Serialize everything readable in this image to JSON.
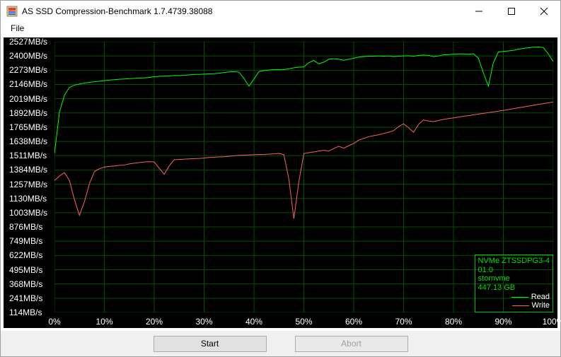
{
  "window": {
    "title": "AS SSD Compression-Benchmark 1.7.4739.38088"
  },
  "menubar": {
    "file": "File"
  },
  "chart": {
    "type": "line",
    "y_unit_suffix": "MB/s",
    "y_min": 114,
    "y_max": 2527,
    "y_ticks": [
      2527,
      2400,
      2273,
      2146,
      2019,
      1892,
      1765,
      1638,
      1511,
      1384,
      1257,
      1130,
      1003,
      876,
      749,
      622,
      495,
      368,
      241,
      114
    ],
    "x_unit_suffix": "%",
    "x_min": 0,
    "x_max": 100,
    "x_ticks": [
      0,
      10,
      20,
      30,
      40,
      50,
      60,
      70,
      80,
      90,
      100
    ],
    "grid_color": "#005000",
    "background_color": "#000000",
    "text_color": "#ffffff",
    "series": {
      "read": {
        "label": "Read",
        "color": "#00ff00",
        "line_width": 1,
        "points": [
          [
            0,
            1530
          ],
          [
            1,
            1900
          ],
          [
            2,
            2050
          ],
          [
            3,
            2120
          ],
          [
            4,
            2140
          ],
          [
            5,
            2150
          ],
          [
            6,
            2158
          ],
          [
            7,
            2165
          ],
          [
            8,
            2170
          ],
          [
            9,
            2175
          ],
          [
            10,
            2180
          ],
          [
            11,
            2185
          ],
          [
            12,
            2188
          ],
          [
            13,
            2192
          ],
          [
            14,
            2195
          ],
          [
            15,
            2198
          ],
          [
            16,
            2200
          ],
          [
            17,
            2203
          ],
          [
            18,
            2205
          ],
          [
            19,
            2208
          ],
          [
            20,
            2215
          ],
          [
            21,
            2218
          ],
          [
            22,
            2220
          ],
          [
            23,
            2222
          ],
          [
            24,
            2225
          ],
          [
            25,
            2225
          ],
          [
            26,
            2228
          ],
          [
            27,
            2232
          ],
          [
            28,
            2235
          ],
          [
            29,
            2236
          ],
          [
            30,
            2238
          ],
          [
            31,
            2240
          ],
          [
            32,
            2242
          ],
          [
            33,
            2246
          ],
          [
            34,
            2252
          ],
          [
            35,
            2258
          ],
          [
            36,
            2260
          ],
          [
            37,
            2255
          ],
          [
            38,
            2200
          ],
          [
            39,
            2130
          ],
          [
            40,
            2195
          ],
          [
            41,
            2260
          ],
          [
            42,
            2270
          ],
          [
            43,
            2275
          ],
          [
            44,
            2278
          ],
          [
            45,
            2280
          ],
          [
            46,
            2278
          ],
          [
            47,
            2285
          ],
          [
            48,
            2295
          ],
          [
            49,
            2300
          ],
          [
            50,
            2302
          ],
          [
            51,
            2340
          ],
          [
            52,
            2360
          ],
          [
            53,
            2330
          ],
          [
            54,
            2345
          ],
          [
            55,
            2370
          ],
          [
            56,
            2375
          ],
          [
            57,
            2370
          ],
          [
            58,
            2362
          ],
          [
            59,
            2370
          ],
          [
            60,
            2380
          ],
          [
            61,
            2390
          ],
          [
            62,
            2395
          ],
          [
            63,
            2398
          ],
          [
            64,
            2398
          ],
          [
            65,
            2400
          ],
          [
            66,
            2398
          ],
          [
            67,
            2400
          ],
          [
            68,
            2395
          ],
          [
            69,
            2398
          ],
          [
            70,
            2400
          ],
          [
            71,
            2402
          ],
          [
            72,
            2398
          ],
          [
            73,
            2405
          ],
          [
            74,
            2408
          ],
          [
            75,
            2405
          ],
          [
            76,
            2395
          ],
          [
            77,
            2400
          ],
          [
            78,
            2410
          ],
          [
            79,
            2412
          ],
          [
            80,
            2415
          ],
          [
            81,
            2418
          ],
          [
            82,
            2418
          ],
          [
            83,
            2415
          ],
          [
            84,
            2420
          ],
          [
            85,
            2380
          ],
          [
            86,
            2250
          ],
          [
            87,
            2130
          ],
          [
            88,
            2340
          ],
          [
            89,
            2435
          ],
          [
            90,
            2440
          ],
          [
            91,
            2445
          ],
          [
            92,
            2450
          ],
          [
            93,
            2460
          ],
          [
            94,
            2468
          ],
          [
            95,
            2473
          ],
          [
            96,
            2478
          ],
          [
            97,
            2480
          ],
          [
            98,
            2475
          ],
          [
            99,
            2420
          ],
          [
            100,
            2350
          ]
        ]
      },
      "write": {
        "label": "Write",
        "color": "#ff6060",
        "line_width": 1,
        "points": [
          [
            0,
            1290
          ],
          [
            1,
            1330
          ],
          [
            2,
            1360
          ],
          [
            3,
            1290
          ],
          [
            4,
            1120
          ],
          [
            5,
            980
          ],
          [
            6,
            1100
          ],
          [
            7,
            1260
          ],
          [
            8,
            1370
          ],
          [
            9,
            1395
          ],
          [
            10,
            1410
          ],
          [
            11,
            1415
          ],
          [
            12,
            1420
          ],
          [
            13,
            1425
          ],
          [
            14,
            1428
          ],
          [
            15,
            1438
          ],
          [
            16,
            1445
          ],
          [
            17,
            1450
          ],
          [
            18,
            1455
          ],
          [
            19,
            1458
          ],
          [
            20,
            1455
          ],
          [
            21,
            1400
          ],
          [
            22,
            1345
          ],
          [
            23,
            1420
          ],
          [
            24,
            1475
          ],
          [
            25,
            1478
          ],
          [
            26,
            1480
          ],
          [
            27,
            1483
          ],
          [
            28,
            1485
          ],
          [
            29,
            1487
          ],
          [
            30,
            1490
          ],
          [
            31,
            1495
          ],
          [
            32,
            1498
          ],
          [
            33,
            1500
          ],
          [
            34,
            1502
          ],
          [
            35,
            1506
          ],
          [
            36,
            1510
          ],
          [
            37,
            1514
          ],
          [
            38,
            1516
          ],
          [
            39,
            1518
          ],
          [
            40,
            1520
          ],
          [
            41,
            1522
          ],
          [
            42,
            1523
          ],
          [
            43,
            1525
          ],
          [
            44,
            1528
          ],
          [
            45,
            1532
          ],
          [
            46,
            1520
          ],
          [
            47,
            1300
          ],
          [
            48,
            950
          ],
          [
            49,
            1280
          ],
          [
            50,
            1530
          ],
          [
            51,
            1538
          ],
          [
            52,
            1545
          ],
          [
            53,
            1552
          ],
          [
            54,
            1560
          ],
          [
            55,
            1552
          ],
          [
            56,
            1575
          ],
          [
            57,
            1595
          ],
          [
            58,
            1578
          ],
          [
            59,
            1600
          ],
          [
            60,
            1620
          ],
          [
            61,
            1650
          ],
          [
            62,
            1665
          ],
          [
            63,
            1680
          ],
          [
            64,
            1690
          ],
          [
            65,
            1698
          ],
          [
            66,
            1710
          ],
          [
            67,
            1720
          ],
          [
            68,
            1735
          ],
          [
            69,
            1770
          ],
          [
            70,
            1795
          ],
          [
            71,
            1760
          ],
          [
            72,
            1720
          ],
          [
            73,
            1790
          ],
          [
            74,
            1830
          ],
          [
            75,
            1820
          ],
          [
            76,
            1815
          ],
          [
            77,
            1825
          ],
          [
            78,
            1835
          ],
          [
            79,
            1842
          ],
          [
            80,
            1848
          ],
          [
            81,
            1855
          ],
          [
            82,
            1862
          ],
          [
            83,
            1868
          ],
          [
            84,
            1875
          ],
          [
            85,
            1882
          ],
          [
            86,
            1888
          ],
          [
            87,
            1895
          ],
          [
            88,
            1902
          ],
          [
            89,
            1908
          ],
          [
            90,
            1915
          ],
          [
            91,
            1922
          ],
          [
            92,
            1930
          ],
          [
            93,
            1938
          ],
          [
            94,
            1945
          ],
          [
            95,
            1953
          ],
          [
            96,
            1960
          ],
          [
            97,
            1968
          ],
          [
            98,
            1975
          ],
          [
            99,
            1982
          ],
          [
            100,
            1990
          ]
        ]
      }
    }
  },
  "legend": {
    "device_line1": "NVMe ZTSSDPG3-4",
    "device_line2": "01.0",
    "device_line3": "stornvme",
    "device_line4": "447.13 GB",
    "read_label": "Read",
    "write_label": "Write"
  },
  "buttons": {
    "start": "Start",
    "abort": "Abort"
  }
}
